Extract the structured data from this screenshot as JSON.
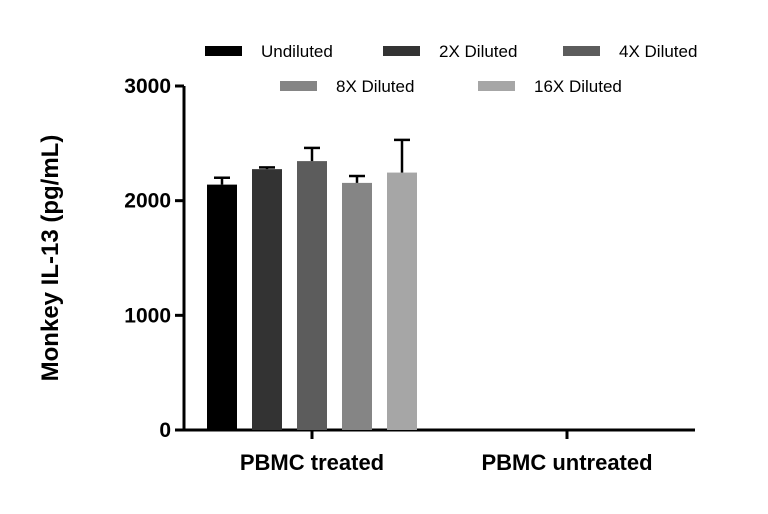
{
  "chart_data": {
    "type": "bar",
    "ylabel": "Monkey IL-13 (pg/mL)",
    "xlabel": "",
    "ylim": [
      0,
      3000
    ],
    "yticks": [
      0,
      1000,
      2000,
      3000
    ],
    "categories": [
      "PBMC treated",
      "PBMC untreated"
    ],
    "legend_position": "top",
    "series": [
      {
        "name": "Undiluted",
        "color": "#000000",
        "values": [
          2140,
          0
        ],
        "errors": [
          60,
          0
        ]
      },
      {
        "name": "2X Diluted",
        "color": "#333333",
        "values": [
          2275,
          0
        ],
        "errors": [
          15,
          0
        ]
      },
      {
        "name": "4X Diluted",
        "color": "#5c5c5c",
        "values": [
          2345,
          0
        ],
        "errors": [
          115,
          0
        ]
      },
      {
        "name": "8X Diluted",
        "color": "#858585",
        "values": [
          2155,
          0
        ],
        "errors": [
          60,
          0
        ]
      },
      {
        "name": "16X Diluted",
        "color": "#a6a6a6",
        "values": [
          2245,
          0
        ],
        "errors": [
          285,
          0
        ]
      }
    ]
  }
}
